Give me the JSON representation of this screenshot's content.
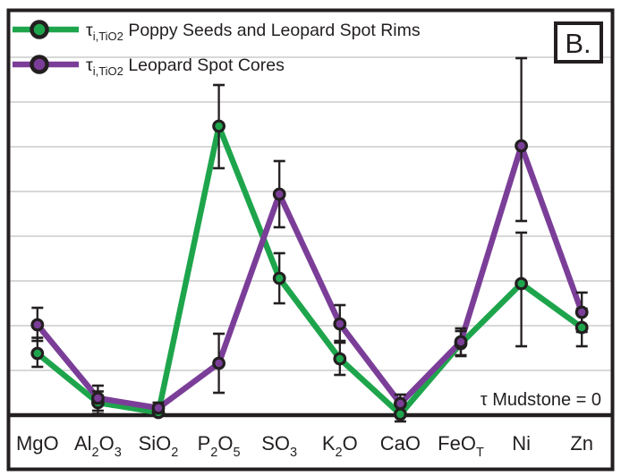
{
  "panel": {
    "label": "B."
  },
  "annotation": {
    "text": "τ Mudstone = 0"
  },
  "colors": {
    "rims_green": "#1EA54C",
    "cores_purple": "#7B3E98",
    "ink": "#231F20",
    "gridline": "#D8D8D8",
    "background": "#FFFFFF"
  },
  "legend": {
    "items": [
      {
        "key": "rims",
        "label": "τ i,TiO2 Poppy Seeds and Leopard Spot Rims",
        "parts": [
          {
            "t": "τ"
          },
          {
            "t": "i,TiO2",
            "sub": true
          },
          {
            "t": " Poppy Seeds and Leopard Spot Rims"
          }
        ],
        "color": "#1EA54C",
        "marker": "circle-on-line"
      },
      {
        "key": "cores",
        "label": "τ i,TiO2 Leopard Spot Cores",
        "parts": [
          {
            "t": "τ"
          },
          {
            "t": "i,TiO2",
            "sub": true
          },
          {
            "t": " Leopard Spot Cores"
          }
        ],
        "color": "#7B3E98",
        "marker": "circle-on-line"
      }
    ]
  },
  "chart_data": {
    "type": "line",
    "title": "",
    "xlabel": "",
    "ylabel": "",
    "y_unit": "gridline-intervals-above-zero-baseline",
    "ylim": [
      0,
      9
    ],
    "gridline_interval": 1,
    "grid": "horizontal-only",
    "legend_position": "top-left-inside",
    "baseline": {
      "value": 0,
      "label": "τ Mudstone = 0"
    },
    "categories": [
      "MgO",
      "Al2O3",
      "SiO2",
      "P2O5",
      "SO3",
      "K2O",
      "CaO",
      "FeOT",
      "Ni",
      "Zn"
    ],
    "category_parts": [
      [
        {
          "t": "MgO"
        }
      ],
      [
        {
          "t": "Al"
        },
        {
          "t": "2",
          "sub": true
        },
        {
          "t": "O"
        },
        {
          "t": "3",
          "sub": true
        }
      ],
      [
        {
          "t": "SiO"
        },
        {
          "t": "2",
          "sub": true
        }
      ],
      [
        {
          "t": "P"
        },
        {
          "t": "2",
          "sub": true
        },
        {
          "t": "O"
        },
        {
          "t": "5",
          "sub": true
        }
      ],
      [
        {
          "t": "SO"
        },
        {
          "t": "3",
          "sub": true
        }
      ],
      [
        {
          "t": "K"
        },
        {
          "t": "2",
          "sub": true
        },
        {
          "t": "O"
        }
      ],
      [
        {
          "t": "CaO"
        }
      ],
      [
        {
          "t": "FeO"
        },
        {
          "t": "T",
          "sub": true
        }
      ],
      [
        {
          "t": "Ni"
        }
      ],
      [
        {
          "t": "Zn"
        }
      ]
    ],
    "series": [
      {
        "name": "τ i,TiO2 Poppy Seeds and Leopard Spot Rims",
        "color": "#1EA54C",
        "values": [
          1.38,
          0.28,
          0.06,
          6.46,
          3.06,
          1.26,
          0.02,
          1.6,
          2.94,
          1.96
        ],
        "err_plus": [
          0.35,
          0.25,
          0.12,
          0.92,
          0.56,
          0.4,
          0.18,
          0.28,
          1.14,
          0.42
        ],
        "err_minus": [
          0.3,
          0.25,
          0.06,
          0.94,
          0.56,
          0.36,
          0.16,
          0.28,
          1.4,
          0.42
        ]
      },
      {
        "name": "τ i,TiO2 Leopard Spot Cores",
        "color": "#7B3E98",
        "values": [
          2.02,
          0.38,
          0.16,
          1.16,
          4.94,
          2.04,
          0.26,
          1.64,
          6.02,
          2.3
        ],
        "err_plus": [
          0.38,
          0.28,
          0.12,
          0.66,
          0.74,
          0.42,
          0.2,
          0.3,
          1.96,
          0.44
        ],
        "err_minus": [
          0.36,
          0.28,
          0.14,
          0.66,
          0.74,
          0.42,
          0.26,
          0.3,
          1.68,
          0.44
        ]
      }
    ]
  }
}
